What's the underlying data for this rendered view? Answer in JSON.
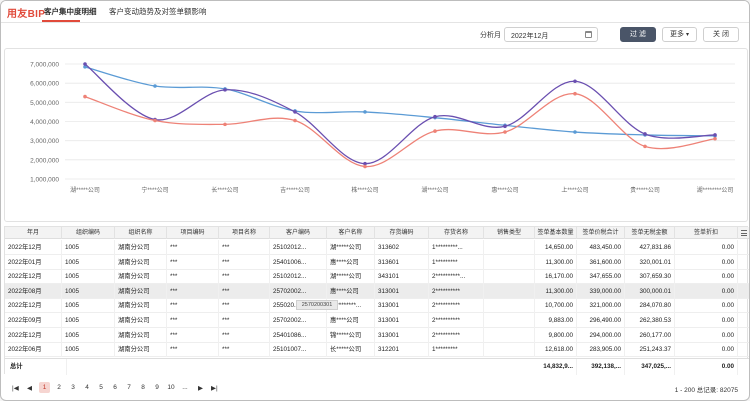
{
  "app": {
    "logo": "用友BIP"
  },
  "tabs": [
    {
      "label": "客户集中度明细",
      "active": true
    },
    {
      "label": "客户变动趋势及对签单额影响",
      "active": false
    }
  ],
  "filter": {
    "period_label": "分析月",
    "period_value": "2022年12月",
    "apply_label": "过 滤",
    "more_label": "更多",
    "close_label": "关 闭"
  },
  "chart_data": {
    "type": "line",
    "categories": [
      "湖*****公司",
      "宁****公司",
      "长****公司",
      "吉*****公司",
      "株****公司",
      "湖****公司",
      "惠****公司",
      "上****公司",
      "贵*****公司",
      "湖********公司"
    ],
    "y_ticks": [
      "7,000,000",
      "6,000,000",
      "5,000,000",
      "4,000,000",
      "3,000,000",
      "2,000,000",
      "1,000,000"
    ],
    "ylim": [
      1000000,
      7000000
    ],
    "series": [
      {
        "color": "#5b9bd5",
        "values": [
          6850000,
          5850000,
          5700000,
          4550000,
          4500000,
          4200000,
          3800000,
          3450000,
          3300000,
          3250000
        ]
      },
      {
        "color": "#6a4fb0",
        "values": [
          7000000,
          4100000,
          5650000,
          4500000,
          1800000,
          4250000,
          3750000,
          6100000,
          3350000,
          3300000
        ]
      },
      {
        "color": "#ee8277",
        "values": [
          5300000,
          4050000,
          3850000,
          4050000,
          1650000,
          3500000,
          3450000,
          5450000,
          2700000,
          3100000
        ]
      }
    ]
  },
  "table": {
    "columns": [
      "年月",
      "组织编码",
      "组织名称",
      "项目编码",
      "项目名称",
      "客户编码",
      "客户名称",
      "存货编码",
      "存货名称",
      "销售类型",
      "签单基本数量",
      "签单价税合计",
      "签单无税金额",
      "签单折扣"
    ],
    "rows": [
      [
        "2022年12月",
        "1005",
        "湖南分公司",
        "***",
        "***",
        "25102012...",
        "湖*****公司",
        "313602",
        "1*********...",
        "",
        "14,650.00",
        "483,450.00",
        "427,831.86",
        "0.00"
      ],
      [
        "2022年01月",
        "1005",
        "湖南分公司",
        "***",
        "***",
        "25401006...",
        "惠****公司",
        "313601",
        "1*********",
        "",
        "11,300.00",
        "361,600.00",
        "320,001.01",
        "0.00"
      ],
      [
        "2022年12月",
        "1005",
        "湖南分公司",
        "***",
        "***",
        "25102012...",
        "湖*****公司",
        "343101",
        "2**********...",
        "",
        "16,170.00",
        "347,655.00",
        "307,659.30",
        "0.00"
      ],
      [
        "2022年08月",
        "1005",
        "湖南分公司",
        "***",
        "***",
        "25702002...",
        "惠****公司",
        "313001",
        "2**********",
        "",
        "11,300.00",
        "339,000.00",
        "300,000.01",
        "0.00"
      ],
      [
        "2022年12月",
        "1005",
        "湖南分公司",
        "***",
        "***",
        "255020...",
        "湖********...",
        "313001",
        "2**********",
        "",
        "10,700.00",
        "321,000.00",
        "284,070.80",
        "0.00"
      ],
      [
        "2022年09月",
        "1005",
        "湖南分公司",
        "***",
        "***",
        "25702002...",
        "惠****公司",
        "313001",
        "2**********",
        "",
        "9,883.00",
        "296,490.00",
        "262,380.53",
        "0.00"
      ],
      [
        "2022年12月",
        "1005",
        "湖南分公司",
        "***",
        "***",
        "25401086...",
        "锦*****公司",
        "313001",
        "2**********",
        "",
        "9,800.00",
        "294,000.00",
        "260,177.00",
        "0.00"
      ],
      [
        "2022年06月",
        "1005",
        "湖南分公司",
        "***",
        "***",
        "25101007...",
        "长*****公司",
        "312201",
        "1*********",
        "",
        "12,618.00",
        "283,905.00",
        "251,243.37",
        "0.00"
      ]
    ],
    "tooltip": "2570200301",
    "total_label": "总计",
    "totals": [
      "14,832,9...",
      "392,138,...",
      "347,025,...",
      "0.00"
    ]
  },
  "pager": {
    "pages": [
      "1",
      "2",
      "3",
      "4",
      "5",
      "6",
      "7",
      "8",
      "9",
      "10",
      "..."
    ],
    "current": "1",
    "info": "1 - 200 总记录: 82075"
  }
}
